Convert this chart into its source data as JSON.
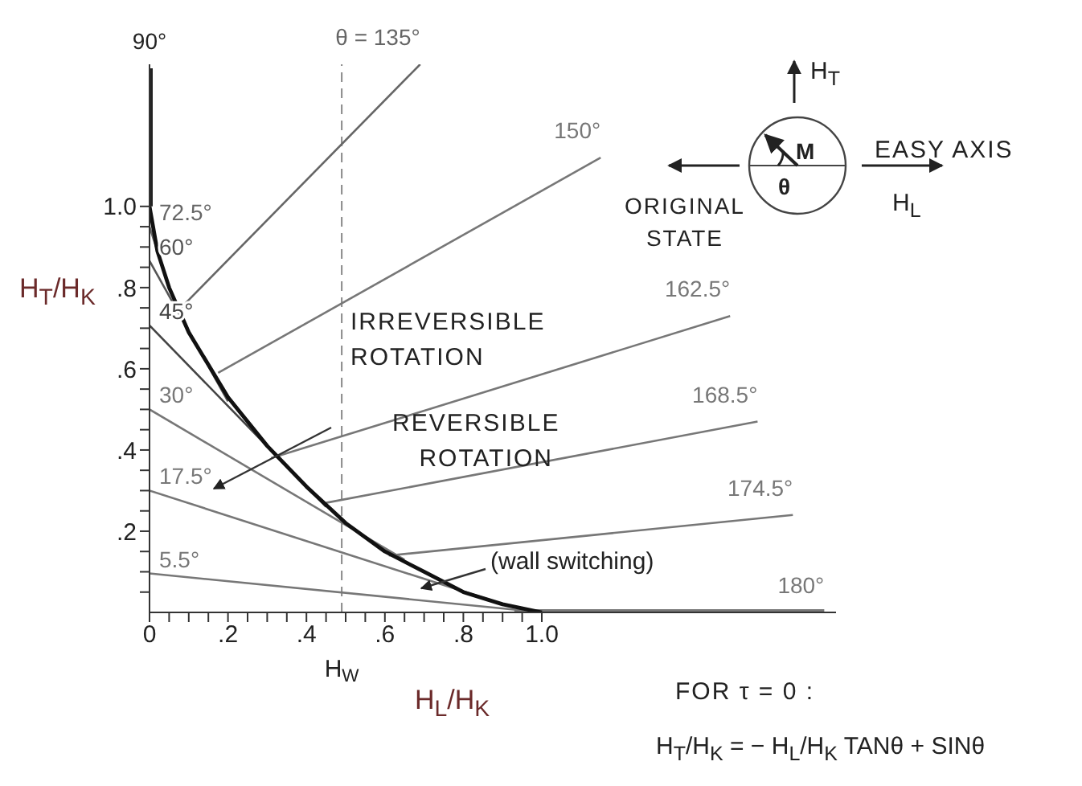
{
  "chart_data": {
    "type": "line",
    "xlabel": "H$_{L}$/H$_{K}$",
    "ylabel": "H$_{T}$/H$_{K}$",
    "xlim": [
      0,
      1.75
    ],
    "ylim": [
      0,
      1.35
    ],
    "xticks": [
      0,
      {
        "value": 0.05,
        "label": null
      },
      {
        "value": 0.1,
        "label": null
      },
      {
        "value": 0.15,
        "label": null
      },
      {
        "value": 0.2,
        "label": ".2"
      },
      {
        "value": 0.25,
        "label": null
      },
      {
        "value": 0.3,
        "label": null
      },
      {
        "value": 0.35,
        "label": null
      },
      {
        "value": 0.4,
        "label": ".4"
      },
      {
        "value": 0.45,
        "label": null
      },
      {
        "value": 0.5,
        "label": null
      },
      {
        "value": 0.55,
        "label": null
      },
      {
        "value": 0.6,
        "label": ".6"
      },
      {
        "value": 0.65,
        "label": null
      },
      {
        "value": 0.7,
        "label": null
      },
      {
        "value": 0.75,
        "label": null
      },
      {
        "value": 0.8,
        "label": ".8"
      },
      {
        "value": 0.85,
        "label": null
      },
      {
        "value": 0.9,
        "label": null
      },
      {
        "value": 0.95,
        "label": null
      },
      {
        "value": 1.0,
        "label": "1.0"
      }
    ],
    "yticks": [
      {
        "value": 0.05,
        "label": null
      },
      {
        "value": 0.1,
        "label": null
      },
      {
        "value": 0.15,
        "label": null
      },
      {
        "value": 0.2,
        "label": ".2"
      },
      {
        "value": 0.25,
        "label": null
      },
      {
        "value": 0.3,
        "label": null
      },
      {
        "value": 0.35,
        "label": null
      },
      {
        "value": 0.4,
        "label": ".4"
      },
      {
        "value": 0.45,
        "label": null
      },
      {
        "value": 0.5,
        "label": null
      },
      {
        "value": 0.55,
        "label": null
      },
      {
        "value": 0.6,
        "label": ".6"
      },
      {
        "value": 0.65,
        "label": null
      },
      {
        "value": 0.7,
        "label": null
      },
      {
        "value": 0.75,
        "label": null
      },
      {
        "value": 0.8,
        "label": ".8"
      },
      {
        "value": 0.85,
        "label": null
      },
      {
        "value": 0.9,
        "label": null
      },
      {
        "value": 0.95,
        "label": null
      },
      {
        "value": 1.0,
        "label": "1.0"
      }
    ],
    "grid": false,
    "legend": false,
    "marker": "none",
    "line_style": "solid",
    "series": [
      {
        "name": "90°",
        "color": "#222222",
        "x": [
          0,
          0
        ],
        "values": [
          1.0,
          1.34
        ]
      },
      {
        "name": "θ = 135°",
        "color": "#666666",
        "x": [
          0.08,
          0.69
        ],
        "values": [
          0.75,
          1.35
        ]
      },
      {
        "name": "150°",
        "color": "#777777",
        "x": [
          0.175,
          1.15
        ],
        "values": [
          0.59,
          1.12
        ]
      },
      {
        "name": "162.5°",
        "color": "#777777",
        "x": [
          0.31,
          1.48
        ],
        "values": [
          0.38,
          0.73
        ]
      },
      {
        "name": "168.5°",
        "color": "#777777",
        "x": [
          0.45,
          1.55
        ],
        "values": [
          0.27,
          0.47
        ]
      },
      {
        "name": "174.5°",
        "color": "#777777",
        "x": [
          0.61,
          1.64
        ],
        "values": [
          0.14,
          0.24
        ]
      },
      {
        "name": "180°",
        "color": "#777777",
        "x": [
          0.93,
          1.72
        ],
        "values": [
          0,
          0
        ]
      },
      {
        "name": "72.5°",
        "color": "#666666",
        "x": [
          0,
          0.03
        ],
        "values": [
          0.95,
          0.86
        ]
      },
      {
        "name": "60°",
        "color": "#555555",
        "x": [
          0,
          0.2
        ],
        "values": [
          0.866,
          0.52
        ]
      },
      {
        "name": "45°",
        "color": "#444444",
        "x": [
          0,
          0.45
        ],
        "values": [
          0.707,
          0.26
        ]
      },
      {
        "name": "30°",
        "color": "#777777",
        "x": [
          0,
          0.65
        ],
        "values": [
          0.5,
          0.13
        ]
      },
      {
        "name": "17.5°",
        "color": "#777777",
        "x": [
          0,
          0.87
        ],
        "values": [
          0.3,
          0.03
        ]
      },
      {
        "name": "5.5°",
        "color": "#777777",
        "x": [
          0,
          0.95
        ],
        "values": [
          0.096,
          0.005
        ]
      },
      {
        "color": "#111111",
        "x": [
          0,
          0.02,
          0.05,
          0.1,
          0.2,
          0.3,
          0.4,
          0.5,
          0.6,
          0.7,
          0.8,
          0.9,
          1.0
        ],
        "values": [
          1.0,
          0.89,
          0.8,
          0.69,
          0.53,
          0.41,
          0.31,
          0.22,
          0.15,
          0.1,
          0.05,
          0.02,
          0
        ]
      }
    ],
    "ref_lines": [
      {
        "axis": "x",
        "value": 0.49,
        "label": "H$_{W}$",
        "line_style": "dashed",
        "color": "#888888"
      }
    ],
    "annotations": [
      "IRREVERSIBLE ROTATION",
      "REVERSIBLE ROTATION",
      "(wall switching)",
      "FOR τ = 0 :",
      "H$_{T}$/H$_{K}$ = − H$_{L}$/H$_{K}$ TANθ + SINθ",
      "H$_{T}$",
      "M",
      "θ",
      "EASY AXIS",
      "H$_{L}$",
      "ORIGINAL STATE"
    ]
  }
}
